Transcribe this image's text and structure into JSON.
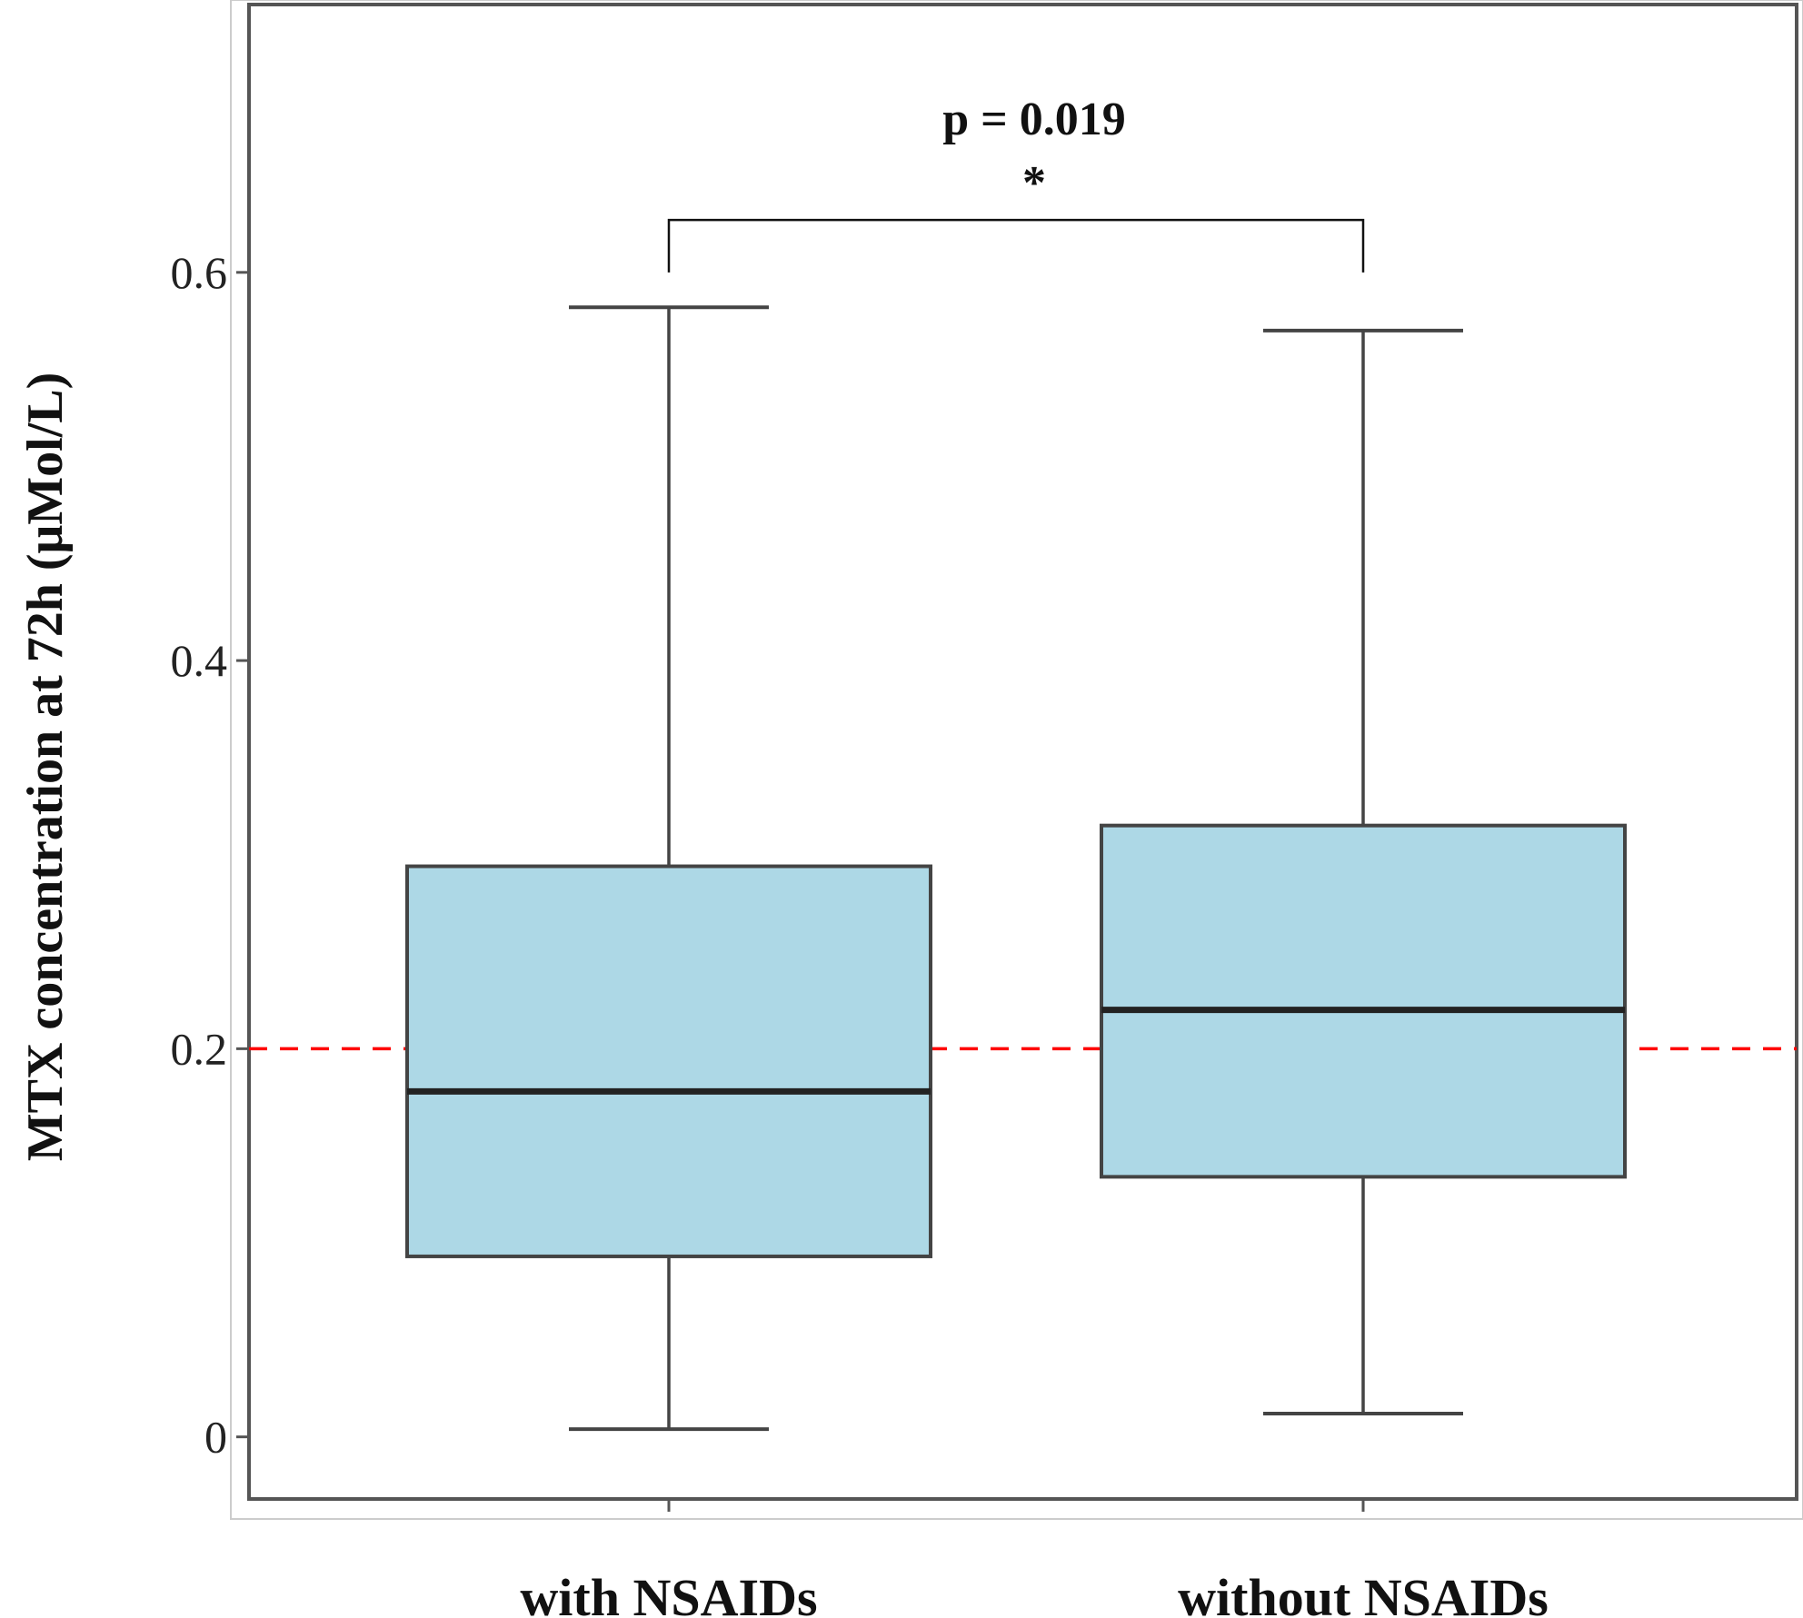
{
  "chart_data": {
    "type": "box",
    "title": "",
    "xlabel": "",
    "ylabel": "MTX concentration at 72h (μMol/L)",
    "categories": [
      "with NSAIDs",
      "without NSAIDs"
    ],
    "boxes": [
      {
        "name": "with NSAIDs",
        "whisker_low": 0.004,
        "q1": 0.093,
        "median": 0.178,
        "q3": 0.294,
        "whisker_high": 0.582
      },
      {
        "name": "without NSAIDs",
        "whisker_low": 0.012,
        "q1": 0.134,
        "median": 0.22,
        "q3": 0.315,
        "whisker_high": 0.57
      }
    ],
    "yticks": [
      0,
      0.2,
      0.4,
      0.6
    ],
    "ytick_labels": [
      "0",
      "0.2",
      "0.4",
      "0.6"
    ],
    "ylim": [
      -0.032,
      0.738
    ],
    "reference_line": {
      "y": 0.2,
      "color": "#ff0000",
      "style": "dashed"
    },
    "significance": {
      "text": "p = 0.019",
      "marker": "*",
      "between": [
        "with NSAIDs",
        "without NSAIDs"
      ]
    },
    "box_fill": "#add8e6",
    "box_stroke": "#444444",
    "grid": false,
    "legend": "none"
  }
}
